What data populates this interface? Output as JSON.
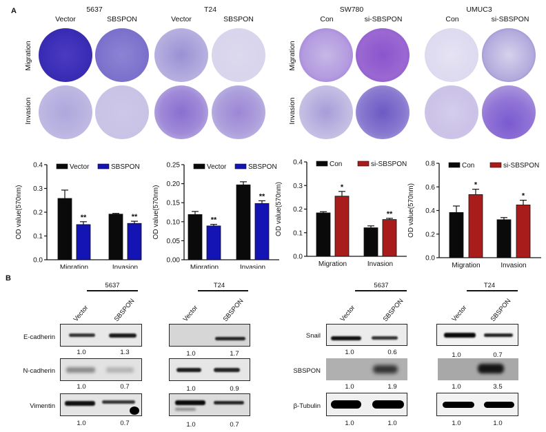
{
  "panel_a": {
    "letter": "A",
    "cell_lines": [
      {
        "name": "5637",
        "conditions": [
          "Vector",
          "SBSPON"
        ]
      },
      {
        "name": "T24",
        "conditions": [
          "Vector",
          "SBSPON"
        ]
      },
      {
        "name": "SW780",
        "conditions": [
          "Con",
          "si-SBSPON"
        ]
      },
      {
        "name": "UMUC3",
        "conditions": [
          "Con",
          "si-SBSPON"
        ]
      }
    ],
    "row_labels": [
      "Migration",
      "Invasion"
    ]
  },
  "panel_b": {
    "letter": "B",
    "blots": [
      {
        "cell_line": "5637",
        "lanes": [
          "Vector",
          "SBSPON"
        ],
        "proteins": [
          "E-cadherin",
          "N-cadherin",
          "Vimentin"
        ],
        "quant": [
          [
            "1.0",
            "1.3"
          ],
          [
            "1.0",
            "0.7"
          ],
          [
            "1.0",
            "0.7"
          ]
        ]
      },
      {
        "cell_line": "T24",
        "lanes": [
          "Vector",
          "SBSPON"
        ],
        "quant": [
          [
            "1.0",
            "1.7"
          ],
          [
            "1.0",
            "0.9"
          ],
          [
            "1.0",
            "0.7"
          ]
        ]
      },
      {
        "cell_line": "5637",
        "lanes": [
          "Vector",
          "SBSPON"
        ],
        "proteins": [
          "Snail",
          "SBSPON",
          "β-Tubulin"
        ],
        "quant": [
          [
            "1.0",
            "0.6"
          ],
          [
            "1.0",
            "1.9"
          ],
          [
            "1.0",
            "1.0"
          ]
        ]
      },
      {
        "cell_line": "T24",
        "lanes": [
          "Vector",
          "SBSPON"
        ],
        "quant": [
          [
            "1.0",
            "0.7"
          ],
          [
            "1.0",
            "3.5"
          ],
          [
            "1.0",
            "1.0"
          ]
        ]
      }
    ]
  },
  "colors": {
    "control": "#0a0a0a",
    "overexpress": "#1414b4",
    "knockdown": "#a81c1c",
    "stain_dark": "#3b2bb0",
    "stain_light": "#c9c3e6"
  },
  "chart_data": [
    {
      "type": "bar",
      "title": "5637",
      "categories": [
        "Migration",
        "Invasion"
      ],
      "series": [
        {
          "name": "Vector",
          "values": [
            0.258,
            0.192
          ],
          "errors": [
            0.035,
            0.003
          ],
          "color": "#0a0a0a"
        },
        {
          "name": "SBSPON",
          "values": [
            0.148,
            0.153
          ],
          "errors": [
            0.012,
            0.009
          ],
          "color": "#1414b4",
          "significance": [
            "**",
            "**"
          ]
        }
      ],
      "xlabel": "",
      "ylabel": "OD value(570nm)",
      "ylim": [
        0,
        0.4
      ],
      "yticks": [
        "0.0",
        "0.1",
        "0.2",
        "0.3",
        "0.4"
      ],
      "legend_position": "top"
    },
    {
      "type": "bar",
      "title": "T24",
      "categories": [
        "Migration",
        "Invasion"
      ],
      "series": [
        {
          "name": "Vector",
          "values": [
            0.119,
            0.197
          ],
          "errors": [
            0.008,
            0.008
          ],
          "color": "#0a0a0a"
        },
        {
          "name": "SBSPON",
          "values": [
            0.089,
            0.148
          ],
          "errors": [
            0.004,
            0.007
          ],
          "color": "#1414b4",
          "significance": [
            "**",
            "**"
          ]
        }
      ],
      "xlabel": "",
      "ylabel": "OD value(570nm)",
      "ylim": [
        0,
        0.25
      ],
      "yticks": [
        "0.00",
        "0.05",
        "0.10",
        "0.15",
        "0.20",
        "0.25"
      ],
      "legend_position": "top"
    },
    {
      "type": "bar",
      "title": "SW780",
      "categories": [
        "Migration",
        "Invasion"
      ],
      "series": [
        {
          "name": "Con",
          "values": [
            0.184,
            0.121
          ],
          "errors": [
            0.005,
            0.008
          ],
          "color": "#0a0a0a"
        },
        {
          "name": "si-SBSPON",
          "values": [
            0.255,
            0.156
          ],
          "errors": [
            0.02,
            0.005
          ],
          "color": "#a81c1c",
          "significance": [
            "*",
            "**"
          ]
        }
      ],
      "xlabel": "",
      "ylabel": "OD value(570nm)",
      "ylim": [
        0,
        0.4
      ],
      "yticks": [
        "0.0",
        "0.1",
        "0.2",
        "0.3",
        "0.4"
      ],
      "legend_position": "top"
    },
    {
      "type": "bar",
      "title": "UMUC3",
      "categories": [
        "Migration",
        "Invasion"
      ],
      "series": [
        {
          "name": "Con",
          "values": [
            0.383,
            0.322
          ],
          "errors": [
            0.055,
            0.018
          ],
          "color": "#0a0a0a"
        },
        {
          "name": "si-SBSPON",
          "values": [
            0.535,
            0.447
          ],
          "errors": [
            0.045,
            0.04
          ],
          "color": "#a81c1c",
          "significance": [
            "*",
            "*"
          ]
        }
      ],
      "xlabel": "",
      "ylabel": "OD value(570nm)",
      "ylim": [
        0,
        0.8
      ],
      "yticks": [
        "0.0",
        "0.2",
        "0.4",
        "0.6",
        "0.8"
      ],
      "legend_position": "top"
    }
  ]
}
